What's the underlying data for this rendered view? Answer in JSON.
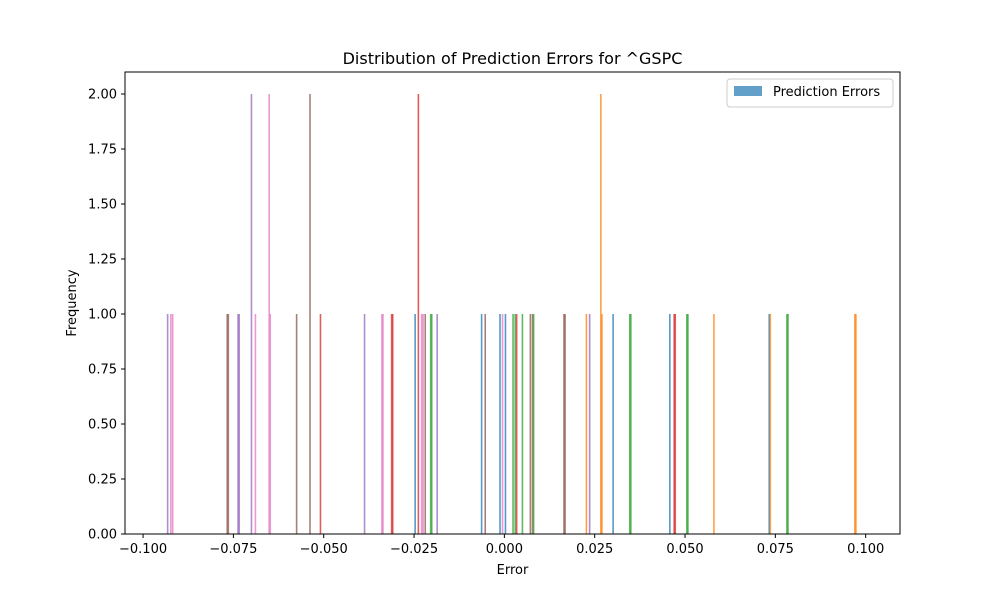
{
  "chart_data": {
    "type": "histogram",
    "title": "Distribution of Prediction Errors for ^GSPC",
    "xlabel": "Error",
    "ylabel": "Frequency",
    "xlim": [
      -0.105,
      0.1095
    ],
    "ylim": [
      0,
      2.1
    ],
    "xticks": [
      -0.1,
      -0.075,
      -0.05,
      -0.025,
      0.0,
      0.025,
      0.05,
      0.075,
      0.1
    ],
    "xtick_labels": [
      "−0.100",
      "−0.075",
      "−0.050",
      "−0.025",
      "0.000",
      "0.025",
      "0.050",
      "0.075",
      "0.100"
    ],
    "yticks": [
      0,
      0.25,
      0.5,
      0.75,
      1.0,
      1.25,
      1.5,
      1.75,
      2.0
    ],
    "ytick_labels": [
      "0.00",
      "0.25",
      "0.50",
      "0.75",
      "1.00",
      "1.25",
      "1.50",
      "1.75",
      "2.00"
    ],
    "legend": {
      "label": "Prediction Errors",
      "color": "#1f77b4",
      "location": "upper right"
    },
    "palette": [
      "#1f77b4",
      "#ff7f0e",
      "#2ca02c",
      "#d62728",
      "#9467bd",
      "#8c564b",
      "#e377c2"
    ],
    "bars": [
      {
        "x": -0.0932,
        "count": 1,
        "color": "#9467bd"
      },
      {
        "x": -0.0923,
        "count": 1,
        "color": "#e377c2"
      },
      {
        "x": -0.0918,
        "count": 1,
        "color": "#e377c2"
      },
      {
        "x": -0.0767,
        "count": 1,
        "color": "#8c564b"
      },
      {
        "x": -0.0764,
        "count": 1,
        "color": "#8c564b"
      },
      {
        "x": -0.0737,
        "count": 1,
        "color": "#9467bd"
      },
      {
        "x": -0.0734,
        "count": 1,
        "color": "#9467bd"
      },
      {
        "x": -0.07,
        "count": 2,
        "color": "#9467bd"
      },
      {
        "x": -0.0689,
        "count": 1,
        "color": "#e377c2"
      },
      {
        "x": -0.0651,
        "count": 2,
        "color": "#e377c2"
      },
      {
        "x": -0.0648,
        "count": 1,
        "color": "#e377c2"
      },
      {
        "x": -0.0575,
        "count": 1,
        "color": "#8c564b"
      },
      {
        "x": -0.0538,
        "count": 2,
        "color": "#8c564b"
      },
      {
        "x": -0.0509,
        "count": 1,
        "color": "#d62728"
      },
      {
        "x": -0.0387,
        "count": 1,
        "color": "#9467bd"
      },
      {
        "x": -0.0339,
        "count": 1,
        "color": "#e377c2"
      },
      {
        "x": -0.0336,
        "count": 1,
        "color": "#e377c2"
      },
      {
        "x": -0.0312,
        "count": 1,
        "color": "#d62728"
      },
      {
        "x": -0.0309,
        "count": 1,
        "color": "#d62728"
      },
      {
        "x": -0.0247,
        "count": 1,
        "color": "#1f77b4"
      },
      {
        "x": -0.0238,
        "count": 2,
        "color": "#d62728"
      },
      {
        "x": -0.0229,
        "count": 1,
        "color": "#e377c2"
      },
      {
        "x": -0.0225,
        "count": 1,
        "color": "#e377c2"
      },
      {
        "x": -0.0219,
        "count": 1,
        "color": "#8c564b"
      },
      {
        "x": -0.0204,
        "count": 1,
        "color": "#2ca02c"
      },
      {
        "x": -0.0201,
        "count": 1,
        "color": "#2ca02c"
      },
      {
        "x": -0.0186,
        "count": 1,
        "color": "#9467bd"
      },
      {
        "x": -0.0063,
        "count": 1,
        "color": "#1f77b4"
      },
      {
        "x": -0.0053,
        "count": 1,
        "color": "#8c564b"
      },
      {
        "x": -0.0012,
        "count": 1,
        "color": "#1f77b4"
      },
      {
        "x": -0.0005,
        "count": 1,
        "color": "#e377c2"
      },
      {
        "x": 0.0003,
        "count": 1,
        "color": "#1f77b4"
      },
      {
        "x": 0.0024,
        "count": 1,
        "color": "#2ca02c"
      },
      {
        "x": 0.003,
        "count": 1,
        "color": "#2ca02c"
      },
      {
        "x": 0.0034,
        "count": 1,
        "color": "#d62728"
      },
      {
        "x": 0.005,
        "count": 1,
        "color": "#2ca02c"
      },
      {
        "x": 0.0072,
        "count": 1,
        "color": "#8c564b"
      },
      {
        "x": 0.0078,
        "count": 1,
        "color": "#8c564b"
      },
      {
        "x": 0.0081,
        "count": 1,
        "color": "#2ca02c"
      },
      {
        "x": 0.0165,
        "count": 1,
        "color": "#8c564b"
      },
      {
        "x": 0.0168,
        "count": 1,
        "color": "#8c564b"
      },
      {
        "x": 0.0227,
        "count": 1,
        "color": "#ff7f0e"
      },
      {
        "x": 0.0236,
        "count": 1,
        "color": "#9467bd"
      },
      {
        "x": 0.0267,
        "count": 2,
        "color": "#ff7f0e"
      },
      {
        "x": 0.027,
        "count": 1,
        "color": "#ff7f0e"
      },
      {
        "x": 0.0301,
        "count": 1,
        "color": "#1f77b4"
      },
      {
        "x": 0.0347,
        "count": 1,
        "color": "#2ca02c"
      },
      {
        "x": 0.035,
        "count": 1,
        "color": "#2ca02c"
      },
      {
        "x": 0.0458,
        "count": 1,
        "color": "#1f77b4"
      },
      {
        "x": 0.047,
        "count": 1,
        "color": "#d62728"
      },
      {
        "x": 0.0473,
        "count": 1,
        "color": "#d62728"
      },
      {
        "x": 0.0505,
        "count": 1,
        "color": "#2ca02c"
      },
      {
        "x": 0.0508,
        "count": 1,
        "color": "#2ca02c"
      },
      {
        "x": 0.058,
        "count": 1,
        "color": "#ff7f0e"
      },
      {
        "x": 0.0733,
        "count": 1,
        "color": "#1f77b4"
      },
      {
        "x": 0.0736,
        "count": 1,
        "color": "#ff7f0e"
      },
      {
        "x": 0.0782,
        "count": 1,
        "color": "#2ca02c"
      },
      {
        "x": 0.0785,
        "count": 1,
        "color": "#2ca02c"
      },
      {
        "x": 0.097,
        "count": 1,
        "color": "#ff7f0e"
      },
      {
        "x": 0.0973,
        "count": 1,
        "color": "#ff7f0e"
      }
    ]
  }
}
